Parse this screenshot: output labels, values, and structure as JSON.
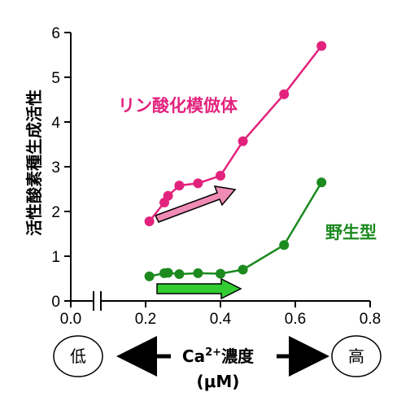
{
  "chart_data": {
    "type": "line",
    "xlabel": "Ca²⁺濃度 (μM)",
    "ylabel": "活性酸素種生成活性",
    "xlim": [
      0.0,
      0.8
    ],
    "ylim": [
      0,
      6
    ],
    "axis_break": "x between 0.0 and 0.2",
    "x_ticks": [
      "0.0",
      "0.2",
      "0.4",
      "0.6",
      "0.8"
    ],
    "y_ticks": [
      "0",
      "1",
      "2",
      "3",
      "4",
      "5",
      "6"
    ],
    "series": [
      {
        "name": "リン酸化模倣体",
        "color": "#e2237d",
        "x": [
          0.21,
          0.25,
          0.26,
          0.29,
          0.34,
          0.4,
          0.46,
          0.57,
          0.67
        ],
        "y": [
          1.78,
          2.2,
          2.35,
          2.58,
          2.63,
          2.8,
          3.57,
          4.62,
          5.7
        ]
      },
      {
        "name": "野生型",
        "color": "#1c8a1f",
        "x": [
          0.21,
          0.25,
          0.26,
          0.29,
          0.34,
          0.4,
          0.46,
          0.57,
          0.67
        ],
        "y": [
          0.55,
          0.62,
          0.63,
          0.6,
          0.62,
          0.61,
          0.7,
          1.25,
          2.65
        ]
      }
    ],
    "arrows": [
      {
        "series": "リン酸化模倣体",
        "fill": "#f08bb5",
        "direction": "up-right"
      },
      {
        "series": "野生型",
        "fill": "#33cc33",
        "direction": "right"
      }
    ]
  },
  "bottom": {
    "low": "低",
    "high": "高",
    "label_prefix": "Ca",
    "label_sup": "2+",
    "label_suffix": "濃度",
    "unit": "(μM)"
  }
}
